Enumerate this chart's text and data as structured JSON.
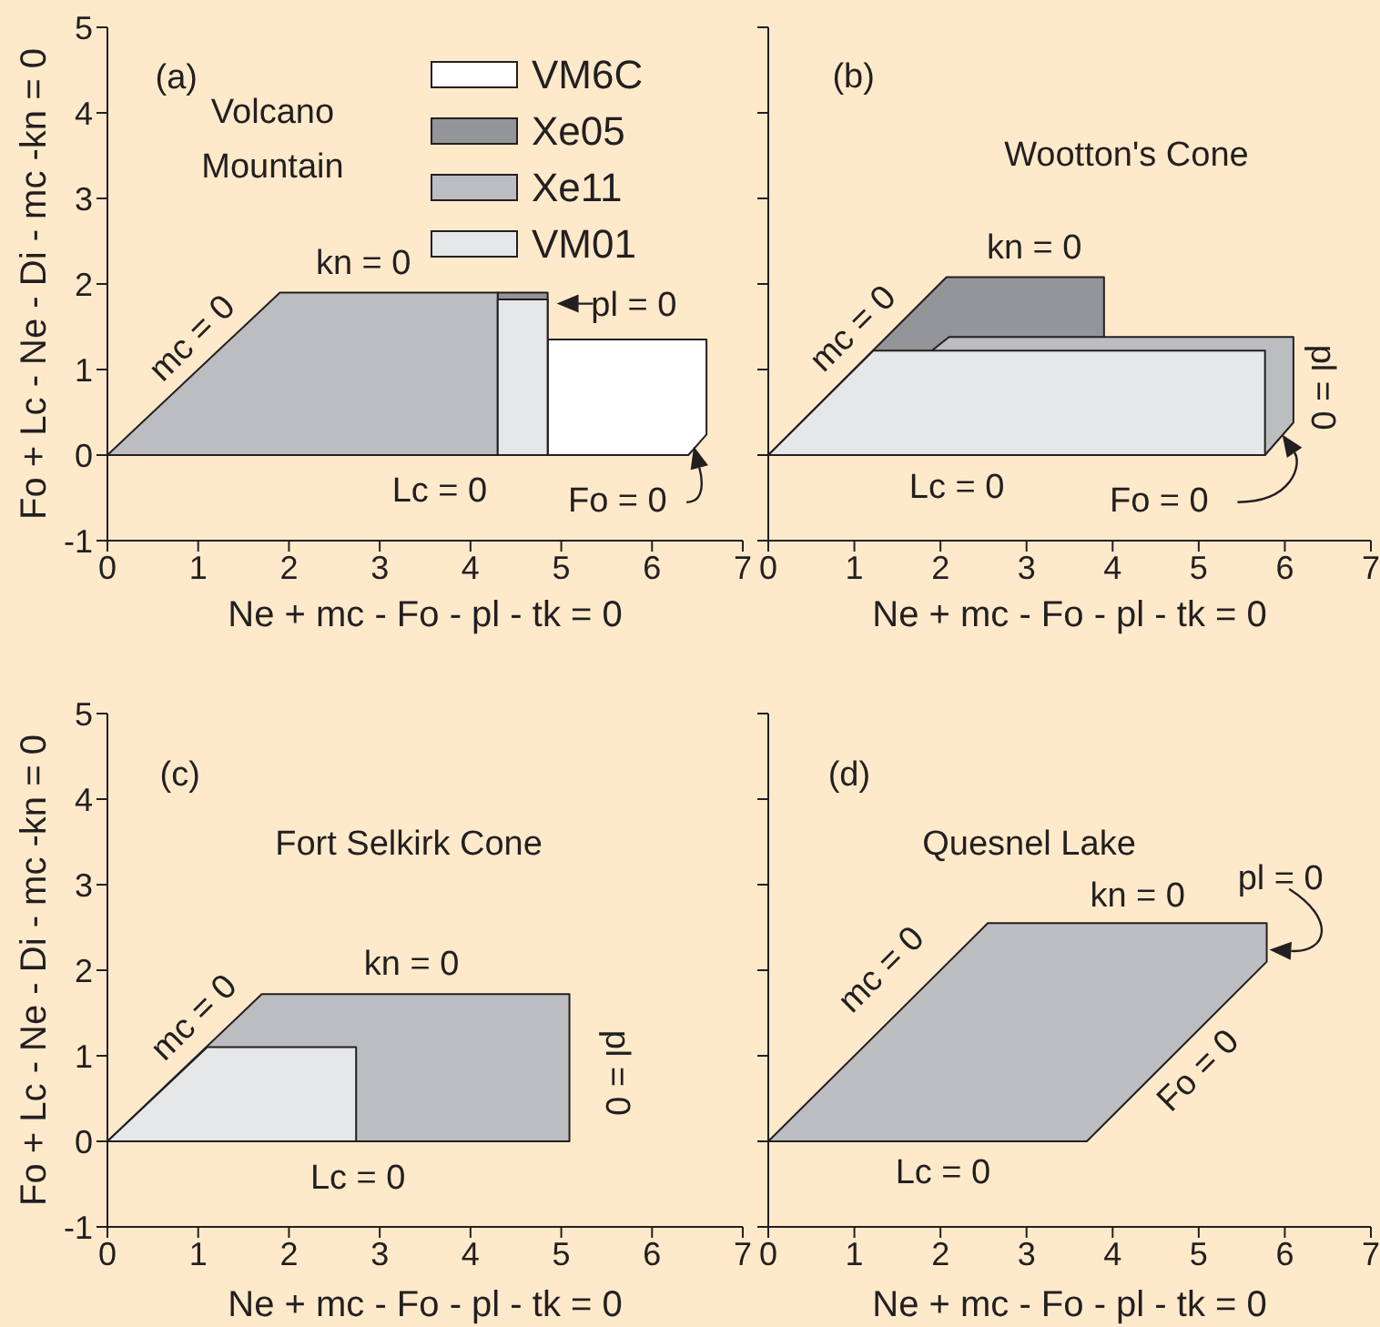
{
  "chart_data": [
    {
      "type": "area",
      "title": "Volcano Mountain",
      "xlabel": "Ne + mc - Fo - pl - tk = 0",
      "ylabel": "Fo + Lc - Ne - Di - mc -kn = 0",
      "xlim": [
        0,
        7
      ],
      "ylim": [
        -1,
        5
      ],
      "xticks": [
        0,
        1,
        2,
        3,
        4,
        5,
        6,
        7
      ],
      "yticks": [
        -1,
        0,
        1,
        2,
        3,
        4,
        5
      ],
      "legend": "top right",
      "series": [
        {
          "name": "VM6C",
          "color": "#ffffff",
          "x": [
            4.85,
            4.85,
            6.6,
            6.6,
            6.4
          ],
          "values": [
            0,
            1.35,
            1.35,
            0.24,
            0
          ]
        },
        {
          "name": "Xe05",
          "color": "#939598",
          "x": [
            4.3,
            4.3,
            4.85,
            4.85
          ],
          "values": [
            0,
            1.9,
            1.9,
            0
          ]
        },
        {
          "name": "Xe11",
          "color": "#bcbdc0",
          "x": [
            0,
            1.9,
            4.3,
            4.3
          ],
          "values": [
            0,
            1.9,
            1.9,
            0
          ]
        },
        {
          "name": "VM01",
          "color": "#e6e7e8",
          "x": [
            4.3,
            4.3,
            4.85,
            4.85
          ],
          "values": [
            0,
            1.82,
            1.82,
            0
          ]
        }
      ],
      "annotations": [
        "(a)",
        "kn = 0",
        "mc = 0",
        "pl = 0",
        "Lc = 0",
        "Fo = 0"
      ]
    },
    {
      "type": "area",
      "title": "Wootton's Cone",
      "xlabel": "Ne + mc - Fo - pl - tk = 0",
      "xlim": [
        0,
        7
      ],
      "ylim": [
        -1,
        5
      ],
      "xticks": [
        0,
        1,
        2,
        3,
        4,
        5,
        6,
        7
      ],
      "yticks": [
        -1,
        0,
        1,
        2,
        3,
        4,
        5
      ],
      "tick_labels": "x",
      "series": [
        {
          "color": "#939598",
          "x": [
            0,
            2.07,
            3.9,
            3.9
          ],
          "values": [
            0,
            2.08,
            2.08,
            0
          ]
        },
        {
          "color": "#bcbdc0",
          "x": [
            1.9,
            2.1,
            6.1,
            6.1,
            5.77,
            1.9
          ],
          "values": [
            1.22,
            1.38,
            1.38,
            0.38,
            0,
            0
          ]
        },
        {
          "color": "#e6e7e8",
          "x": [
            0,
            1.22,
            5.77,
            5.77
          ],
          "values": [
            0,
            1.22,
            1.22,
            0
          ]
        }
      ],
      "annotations": [
        "(b)",
        "kn = 0",
        "mc = 0",
        "pl = 0",
        "Lc = 0",
        "Fo = 0"
      ]
    },
    {
      "type": "area",
      "title": "Fort Selkirk Cone",
      "xlabel": "Ne + mc - Fo - pl - tk = 0",
      "ylabel": "Fo + Lc - Ne - Di - mc -kn = 0",
      "xlim": [
        0,
        7
      ],
      "ylim": [
        -1,
        5
      ],
      "xticks": [
        0,
        1,
        2,
        3,
        4,
        5,
        6,
        7
      ],
      "yticks": [
        -1,
        0,
        1,
        2,
        3,
        4,
        5
      ],
      "series": [
        {
          "color": "#bcbdc0",
          "x": [
            0,
            1.7,
            5.09,
            5.09
          ],
          "values": [
            0,
            1.72,
            1.72,
            0
          ]
        },
        {
          "color": "#e6e7e8",
          "x": [
            0,
            1.1,
            2.74,
            2.74
          ],
          "values": [
            0,
            1.1,
            1.1,
            0
          ]
        }
      ],
      "annotations": [
        "(c)",
        "kn = 0",
        "mc = 0",
        "pl = 0",
        "Lc = 0"
      ]
    },
    {
      "type": "area",
      "title": "Quesnel Lake",
      "xlabel": "Ne + mc - Fo - pl - tk = 0",
      "xlim": [
        0,
        7
      ],
      "ylim": [
        -1,
        5
      ],
      "xticks": [
        0,
        1,
        2,
        3,
        4,
        5,
        6,
        7
      ],
      "yticks": [
        -1,
        0,
        1,
        2,
        3,
        4,
        5
      ],
      "tick_labels": "x",
      "series": [
        {
          "color": "#bcbdc0",
          "x": [
            0,
            2.55,
            5.79,
            5.79,
            3.7
          ],
          "values": [
            0,
            2.55,
            2.55,
            2.1,
            0
          ]
        }
      ],
      "annotations": [
        "(d)",
        "kn = 0",
        "mc = 0",
        "pl = 0",
        "Fo = 0",
        "Lc = 0"
      ]
    }
  ]
}
